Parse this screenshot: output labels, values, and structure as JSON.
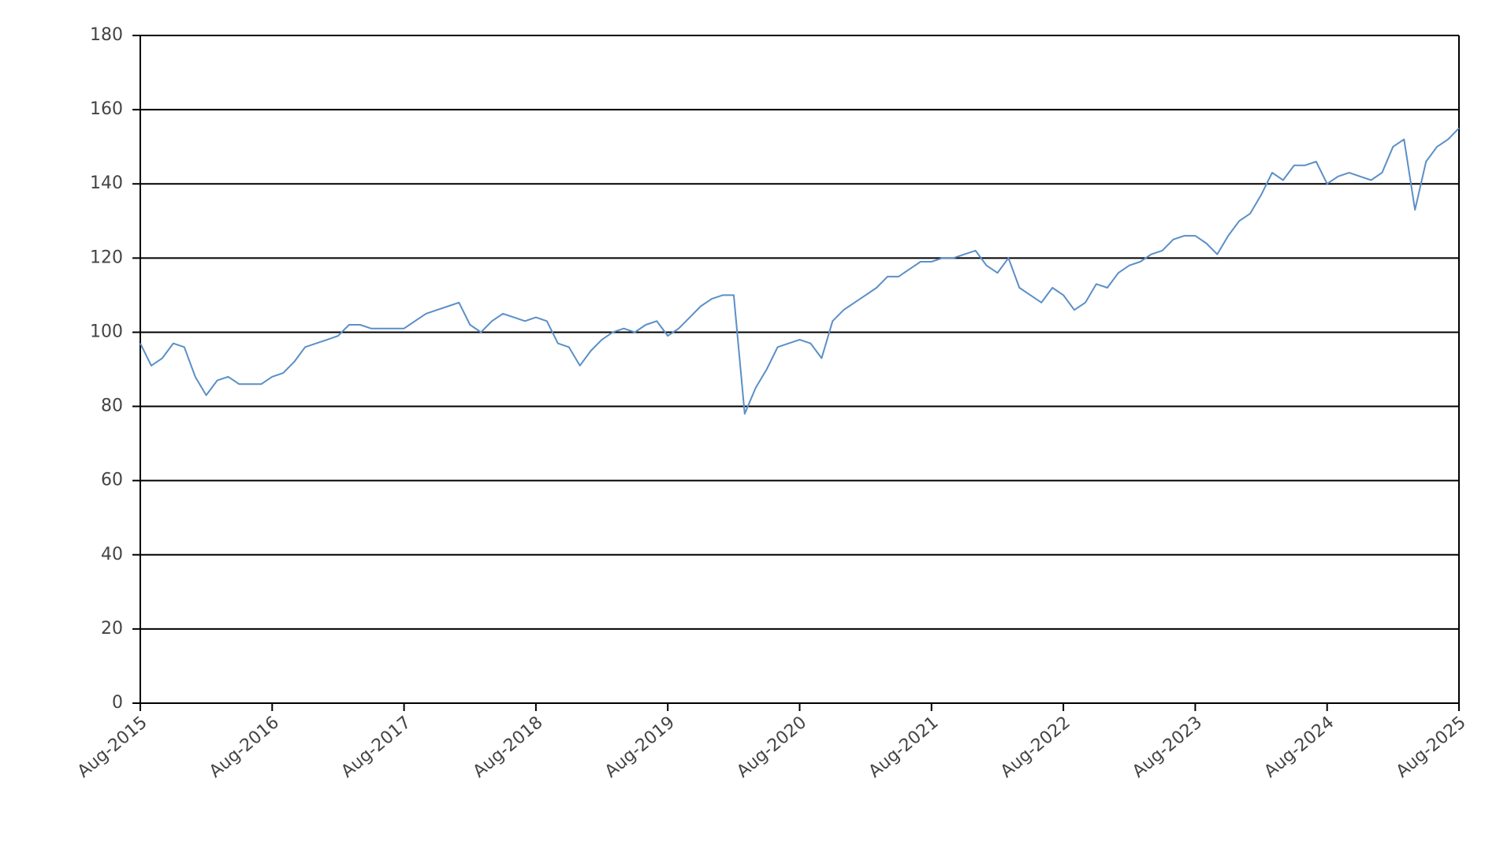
{
  "chart_data": {
    "type": "line",
    "x": [
      "2015-08",
      "2015-09",
      "2015-10",
      "2015-11",
      "2015-12",
      "2016-01",
      "2016-02",
      "2016-03",
      "2016-04",
      "2016-05",
      "2016-06",
      "2016-07",
      "2016-08",
      "2016-09",
      "2016-10",
      "2016-11",
      "2016-12",
      "2017-01",
      "2017-02",
      "2017-03",
      "2017-04",
      "2017-05",
      "2017-06",
      "2017-07",
      "2017-08",
      "2017-09",
      "2017-10",
      "2017-11",
      "2017-12",
      "2018-01",
      "2018-02",
      "2018-03",
      "2018-04",
      "2018-05",
      "2018-06",
      "2018-07",
      "2018-08",
      "2018-09",
      "2018-10",
      "2018-11",
      "2018-12",
      "2019-01",
      "2019-02",
      "2019-03",
      "2019-04",
      "2019-05",
      "2019-06",
      "2019-07",
      "2019-08",
      "2019-09",
      "2019-10",
      "2019-11",
      "2019-12",
      "2020-01",
      "2020-02",
      "2020-03",
      "2020-04",
      "2020-05",
      "2020-06",
      "2020-07",
      "2020-08",
      "2020-09",
      "2020-10",
      "2020-11",
      "2020-12",
      "2021-01",
      "2021-02",
      "2021-03",
      "2021-04",
      "2021-05",
      "2021-06",
      "2021-07",
      "2021-08",
      "2021-09",
      "2021-10",
      "2021-11",
      "2021-12",
      "2022-01",
      "2022-02",
      "2022-03",
      "2022-04",
      "2022-05",
      "2022-06",
      "2022-07",
      "2022-08",
      "2022-09",
      "2022-10",
      "2022-11",
      "2022-12",
      "2023-01",
      "2023-02",
      "2023-03",
      "2023-04",
      "2023-05",
      "2023-06",
      "2023-07",
      "2023-08",
      "2023-09",
      "2023-10",
      "2023-11",
      "2023-12",
      "2024-01",
      "2024-02",
      "2024-03",
      "2024-04",
      "2024-05",
      "2024-06",
      "2024-07",
      "2024-08",
      "2024-09",
      "2024-10",
      "2024-11",
      "2024-12",
      "2025-01",
      "2025-02",
      "2025-03",
      "2025-04",
      "2025-05",
      "2025-06",
      "2025-07",
      "2025-08"
    ],
    "series": [
      {
        "color": "#5b8fc7",
        "values": [
          97,
          91,
          93,
          97,
          96,
          88,
          83,
          87,
          88,
          86,
          86,
          86,
          88,
          89,
          92,
          96,
          97,
          98,
          99,
          102,
          102,
          101,
          101,
          101,
          101,
          103,
          105,
          106,
          107,
          108,
          102,
          100,
          103,
          105,
          104,
          103,
          104,
          103,
          97,
          96,
          91,
          95,
          98,
          100,
          101,
          100,
          102,
          103,
          99,
          101,
          104,
          107,
          109,
          110,
          110,
          78,
          85,
          90,
          96,
          97,
          98,
          97,
          93,
          103,
          106,
          108,
          110,
          112,
          115,
          115,
          117,
          119,
          119,
          120,
          120,
          121,
          122,
          118,
          116,
          120,
          112,
          110,
          108,
          112,
          110,
          106,
          108,
          113,
          112,
          116,
          118,
          119,
          121,
          122,
          125,
          126,
          126,
          124,
          121,
          126,
          130,
          132,
          137,
          143,
          141,
          145,
          145,
          146,
          140,
          142,
          143,
          142,
          141,
          143,
          150,
          152,
          133,
          146,
          150,
          152,
          155
        ]
      }
    ],
    "xlim": [
      "2015-08",
      "2025-08"
    ],
    "xticks": [
      {
        "value": "2015-08",
        "label": "Aug-2015"
      },
      {
        "value": "2016-08",
        "label": "Aug-2016"
      },
      {
        "value": "2017-08",
        "label": "Aug-2017"
      },
      {
        "value": "2018-08",
        "label": "Aug-2018"
      },
      {
        "value": "2019-08",
        "label": "Aug-2019"
      },
      {
        "value": "2020-08",
        "label": "Aug-2020"
      },
      {
        "value": "2021-08",
        "label": "Aug-2021"
      },
      {
        "value": "2022-08",
        "label": "Aug-2022"
      },
      {
        "value": "2023-08",
        "label": "Aug-2023"
      },
      {
        "value": "2024-08",
        "label": "Aug-2024"
      },
      {
        "value": "2025-08",
        "label": "Aug-2025"
      }
    ],
    "ylim": [
      0,
      180
    ],
    "yticks": [
      0,
      20,
      40,
      60,
      80,
      100,
      120,
      140,
      160,
      180
    ],
    "grid": true
  }
}
